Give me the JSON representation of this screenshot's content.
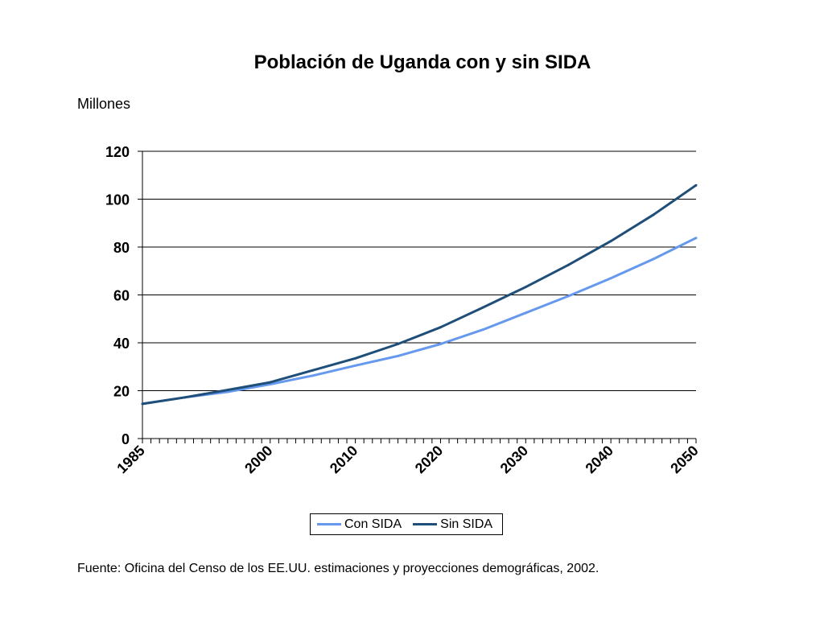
{
  "chart_data": {
    "type": "line",
    "title": "Población de Uganda con y sin SIDA",
    "ylabel": "Millones",
    "xlabel": "",
    "xlim": [
      1985,
      2050
    ],
    "ylim": [
      0,
      120
    ],
    "yticks": [
      0,
      20,
      40,
      60,
      80,
      100,
      120
    ],
    "xtick_labels": [
      "1985",
      "2000",
      "2010",
      "2020",
      "2030",
      "2040",
      "2050"
    ],
    "grid": true,
    "legend_position": "bottom",
    "x": [
      1985,
      1990,
      1995,
      2000,
      2005,
      2010,
      2015,
      2020,
      2025,
      2030,
      2035,
      2040,
      2045,
      2050
    ],
    "series": [
      {
        "name": "Con SIDA",
        "color": "#6699ee",
        "values": [
          14.5,
          17.2,
          19.5,
          22.7,
          26.3,
          30.5,
          34.5,
          39.5,
          45.5,
          52.5,
          59.5,
          67.0,
          75.0,
          83.8
        ]
      },
      {
        "name": "Sin SIDA",
        "color": "#1f4e79",
        "values": [
          14.5,
          17.2,
          20.3,
          23.5,
          28.5,
          33.5,
          39.5,
          46.5,
          54.8,
          63.3,
          72.5,
          82.5,
          93.5,
          105.8
        ]
      }
    ]
  },
  "source_note": "Fuente: Oficina del Censo de los EE.UU. estimaciones y proyecciones demográficas, 2002."
}
